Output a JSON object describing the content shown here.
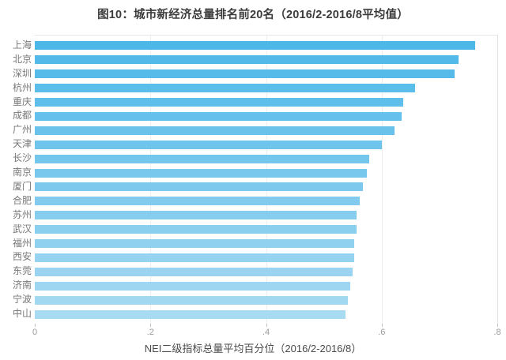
{
  "title": "图10：城市新经济总量排名前20名（2016/2-2016/8平均值）",
  "chart_data": {
    "type": "bar",
    "orientation": "horizontal",
    "title": "图10：城市新经济总量排名前20名（2016/2-2016/8平均值）",
    "categories": [
      "上海",
      "北京",
      "深圳",
      "杭州",
      "重庆",
      "成都",
      "广州",
      "天津",
      "长沙",
      "南京",
      "厦门",
      "合肥",
      "苏州",
      "武汉",
      "福州",
      "西安",
      "东莞",
      "济南",
      "宁波",
      "中山"
    ],
    "values": [
      0.762,
      0.733,
      0.726,
      0.658,
      0.637,
      0.634,
      0.622,
      0.6,
      0.579,
      0.575,
      0.568,
      0.562,
      0.557,
      0.556,
      0.553,
      0.552,
      0.55,
      0.546,
      0.542,
      0.538
    ],
    "xlabel": "NEI二级指标总量平均百分位（2016/2-2016/8）",
    "ylabel": "",
    "xlim": [
      0,
      0.8
    ],
    "tick_values": [
      0,
      0.2,
      0.4,
      0.6,
      0.8
    ],
    "tick_labels": [
      "0",
      ".2",
      ".4",
      ".6",
      ".8"
    ],
    "grid": "vertical-only",
    "legend": "none",
    "bar_color_start": "#4db7e8",
    "bar_color_end": "#a8daf2",
    "gridline_color": "#ededed",
    "title_color": "#3c3c3c",
    "label_color": "#787878",
    "tick_color": "#9a9a9a"
  }
}
